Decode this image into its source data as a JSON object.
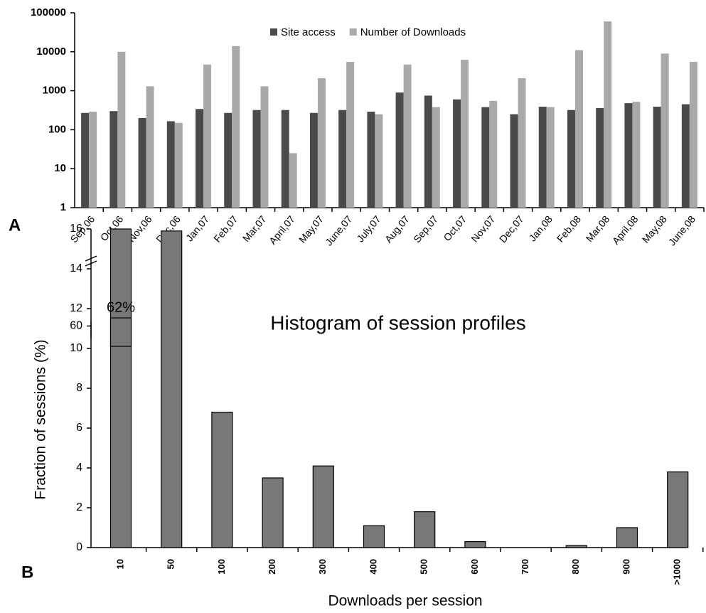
{
  "chart_data": [
    {
      "type": "bar",
      "panel": "A",
      "log_scale": true,
      "categories": [
        "Sep,06",
        "Oct,06",
        "Nov,06",
        "Dec,06",
        "Jan,07",
        "Feb,07",
        "Mar,07",
        "April,07",
        "May,07",
        "June,07",
        "July,07",
        "Aug,07",
        "Sep,07",
        "Oct,07",
        "Nov,07",
        "Dec,07",
        "Jan,08",
        "Feb,08",
        "Mar,08",
        "April,08",
        "May,08",
        "June,08"
      ],
      "series": [
        {
          "name": "Site access",
          "color": "#4a4a4a",
          "values": [
            270,
            300,
            200,
            165,
            340,
            270,
            320,
            320,
            270,
            320,
            290,
            900,
            750,
            600,
            380,
            250,
            390,
            320,
            360,
            480,
            390,
            450
          ]
        },
        {
          "name": "Number of Downloads",
          "color": "#a9a9a9",
          "values": [
            290,
            10000,
            1300,
            150,
            4700,
            14000,
            1300,
            25,
            2100,
            5500,
            250,
            4700,
            380,
            6200,
            550,
            2100,
            380,
            11000,
            60000,
            520,
            9000,
            5500
          ]
        }
      ],
      "ylim": [
        1,
        100000
      ],
      "yticks": [
        1,
        10,
        100,
        1000,
        10000,
        100000
      ],
      "legend": "top"
    },
    {
      "type": "bar",
      "panel": "B",
      "title": "Histogram of session profiles",
      "x_label": "Downloads per session",
      "y_label": "Fraction of sessions (%)",
      "categories": [
        "10",
        "50",
        "100",
        "200",
        "300",
        "400",
        "500",
        "600",
        "700",
        "800",
        "900",
        ">1000"
      ],
      "values": [
        62,
        15.9,
        6.8,
        3.5,
        4.1,
        1.1,
        1.8,
        0.3,
        0,
        0.1,
        1.0,
        3.8
      ],
      "value_labels": [
        "62%",
        null,
        null,
        null,
        null,
        null,
        null,
        null,
        null,
        null,
        null,
        null
      ],
      "color": "#787878",
      "ylim": [
        0,
        16
      ],
      "yticks": [
        0,
        2,
        4,
        6,
        8,
        10,
        12,
        14,
        16
      ],
      "y_upper_lim": [
        55,
        62
      ],
      "y_upper_ticks": [
        60
      ]
    }
  ]
}
